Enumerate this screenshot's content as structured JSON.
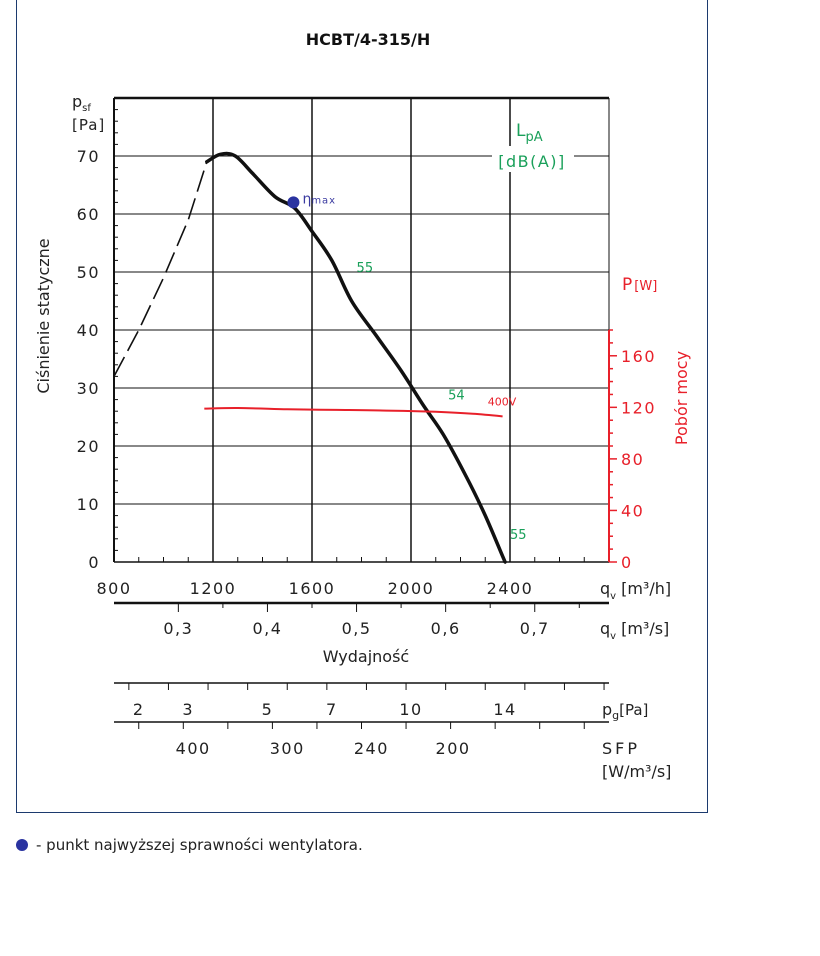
{
  "chart_data": {
    "type": "line",
    "title": "HCBT/4-315/H",
    "y_label": "Ciśnienie statyczne",
    "y_symbol": "p",
    "y_sub": "sf",
    "y_unit": "[Pa]",
    "y_ticks": [
      0,
      10,
      20,
      30,
      40,
      50,
      60,
      70
    ],
    "ylim": [
      0,
      80
    ],
    "x_label": "Wydajność",
    "x_symbol": "q",
    "x_sub": "v",
    "x_unit_m3h": "[m³/h]",
    "x_unit_m3s": "[m³/s]",
    "xlim": [
      800,
      2800
    ],
    "x_ticks_m3h": [
      800,
      1200,
      1600,
      2000,
      2400
    ],
    "x_ticks_m3s": [
      "0,3",
      "0,4",
      "0,5",
      "0,6",
      "0,7"
    ],
    "y2_label": "Pobór mocy",
    "y2_symbol": "P",
    "y2_unit": "[W]",
    "y2_ticks": [
      0,
      40,
      80,
      120,
      160
    ],
    "lpa_label": "L",
    "lpa_sub": "pA",
    "lpa_unit": "[dB(A)]",
    "series": [
      {
        "name": "",
        "color": "#111111",
        "dashed_points": [
          [
            800,
            32
          ],
          [
            900,
            40
          ],
          [
            1000,
            49
          ],
          [
            1100,
            59
          ],
          [
            1175,
            69
          ]
        ],
        "points": [
          [
            1175,
            69
          ],
          [
            1230,
            70.3
          ],
          [
            1290,
            70
          ],
          [
            1360,
            67
          ],
          [
            1450,
            63
          ],
          [
            1530,
            61
          ],
          [
            1600,
            57
          ],
          [
            1680,
            52
          ],
          [
            1760,
            45
          ],
          [
            1860,
            39
          ],
          [
            1960,
            33
          ],
          [
            2050,
            27
          ],
          [
            2130,
            22
          ],
          [
            2220,
            15
          ],
          [
            2300,
            8
          ],
          [
            2370,
            1
          ],
          [
            2380,
            0
          ]
        ]
      },
      {
        "name": "400V",
        "color": "#e8202a",
        "axis": "y2",
        "points": [
          [
            1165,
            119
          ],
          [
            1300,
            119.5
          ],
          [
            1500,
            118.5
          ],
          [
            1700,
            118
          ],
          [
            1900,
            117.5
          ],
          [
            2100,
            116.5
          ],
          [
            2250,
            115
          ],
          [
            2370,
            113
          ]
        ]
      }
    ],
    "annotations": [
      {
        "text": "55",
        "x": 1780,
        "y": 50,
        "color": "green"
      },
      {
        "text": "54",
        "x": 2150,
        "y": 28,
        "color": "green"
      },
      {
        "text": "55",
        "x": 2400,
        "y": 4,
        "color": "green"
      },
      {
        "text": "400V",
        "x": 2310,
        "y": 27,
        "color": "red"
      }
    ],
    "eta_point": {
      "label": "η",
      "sub": "max",
      "x": 1525,
      "y": 62
    },
    "pg_label": "p",
    "pg_sub": "g",
    "pg_unit": "[Pa]",
    "pg_ticks": [
      {
        "label": "2",
        "x": 900
      },
      {
        "label": "3",
        "x": 1100
      },
      {
        "label": "5",
        "x": 1420
      },
      {
        "label": "7",
        "x": 1680
      },
      {
        "label": "10",
        "x": 2000
      },
      {
        "label": "14",
        "x": 2380
      }
    ],
    "sfp_label": "SFP",
    "sfp_unit": "[W/m³/s]",
    "sfp_ticks": [
      {
        "label": "400",
        "x": 1120
      },
      {
        "label": "300",
        "x": 1500
      },
      {
        "label": "240",
        "x": 1840
      },
      {
        "label": "200",
        "x": 2170
      }
    ]
  },
  "footnote": "- punkt najwyższej sprawności wentylatora."
}
